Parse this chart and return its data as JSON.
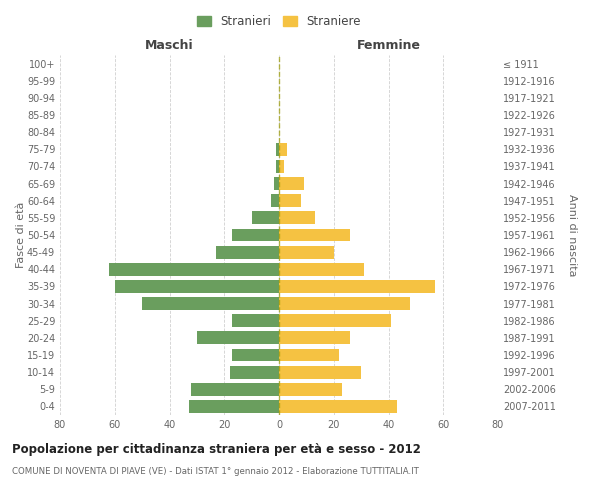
{
  "age_groups": [
    "0-4",
    "5-9",
    "10-14",
    "15-19",
    "20-24",
    "25-29",
    "30-34",
    "35-39",
    "40-44",
    "45-49",
    "50-54",
    "55-59",
    "60-64",
    "65-69",
    "70-74",
    "75-79",
    "80-84",
    "85-89",
    "90-94",
    "95-99",
    "100+"
  ],
  "birth_years": [
    "2007-2011",
    "2002-2006",
    "1997-2001",
    "1992-1996",
    "1987-1991",
    "1982-1986",
    "1977-1981",
    "1972-1976",
    "1967-1971",
    "1962-1966",
    "1957-1961",
    "1952-1956",
    "1947-1951",
    "1942-1946",
    "1937-1941",
    "1932-1936",
    "1927-1931",
    "1922-1926",
    "1917-1921",
    "1912-1916",
    "≤ 1911"
  ],
  "males": [
    33,
    32,
    18,
    17,
    30,
    17,
    50,
    60,
    62,
    23,
    17,
    10,
    3,
    2,
    1,
    1,
    0,
    0,
    0,
    0,
    0
  ],
  "females": [
    43,
    23,
    30,
    22,
    26,
    41,
    48,
    57,
    31,
    20,
    26,
    13,
    8,
    9,
    2,
    3,
    0,
    0,
    0,
    0,
    0
  ],
  "male_color": "#6a9e5e",
  "female_color": "#f5c242",
  "title": "Popolazione per cittadinanza straniera per età e sesso - 2012",
  "subtitle": "COMUNE DI NOVENTA DI PIAVE (VE) - Dati ISTAT 1° gennaio 2012 - Elaborazione TUTTITALIA.IT",
  "xlabel_left": "Maschi",
  "xlabel_right": "Femmine",
  "ylabel_left": "Fasce di età",
  "ylabel_right": "Anni di nascita",
  "legend_male": "Stranieri",
  "legend_female": "Straniere",
  "xlim": 80,
  "background_color": "#ffffff",
  "grid_color": "#d0d0d0"
}
